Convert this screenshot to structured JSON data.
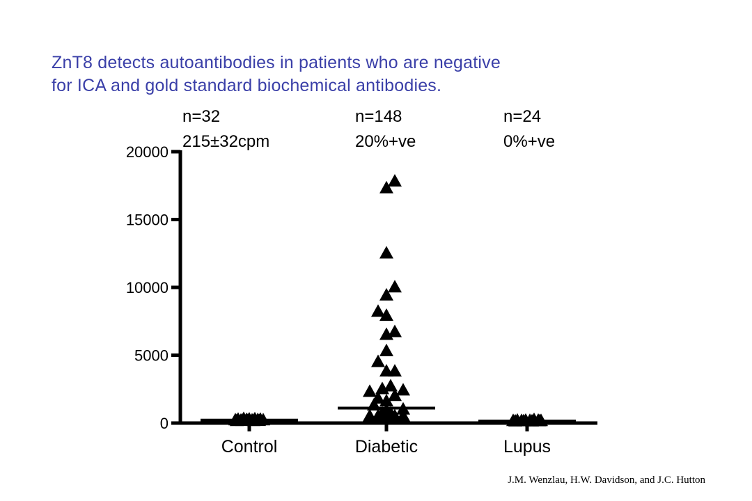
{
  "title": {
    "line1": "ZnT8 detects autoantibodies in patients who are negative",
    "line2": "for ICA and gold standard biochemical antibodies."
  },
  "groups": [
    {
      "name": "Control",
      "n_label": "n=32",
      "stat_label": "215±32cpm"
    },
    {
      "name": "Diabetic",
      "n_label": "n=148",
      "stat_label": "20%+ve"
    },
    {
      "name": "Lupus",
      "n_label": "n=24",
      "stat_label": "0%+ve"
    }
  ],
  "credit": "J.M. Wenzlau, H.W. Davidson, and J.C. Hutton",
  "chart_data": {
    "type": "scatter",
    "marker": "triangle",
    "marker_color": "#000000",
    "categories": [
      "Control",
      "Diabetic",
      "Lupus"
    ],
    "yticks": [
      0,
      5000,
      10000,
      15000,
      20000
    ],
    "ylim": [
      0,
      20000
    ],
    "grid": false,
    "medians": [
      215,
      1100,
      150
    ],
    "series": [
      {
        "category": "Control",
        "points": [
          {
            "jitter": -0.4,
            "y": 200
          },
          {
            "jitter": -0.32,
            "y": 250
          },
          {
            "jitter": -0.24,
            "y": 180
          },
          {
            "jitter": -0.16,
            "y": 300
          },
          {
            "jitter": -0.08,
            "y": 220
          },
          {
            "jitter": 0.0,
            "y": 260
          },
          {
            "jitter": 0.08,
            "y": 190
          },
          {
            "jitter": 0.16,
            "y": 280
          },
          {
            "jitter": 0.24,
            "y": 210
          },
          {
            "jitter": 0.32,
            "y": 240
          },
          {
            "jitter": 0.4,
            "y": 200
          },
          {
            "jitter": -0.36,
            "y": 150
          },
          {
            "jitter": -0.2,
            "y": 160
          },
          {
            "jitter": -0.04,
            "y": 170
          },
          {
            "jitter": 0.12,
            "y": 150
          },
          {
            "jitter": 0.28,
            "y": 160
          }
        ]
      },
      {
        "category": "Diabetic",
        "points": [
          {
            "jitter": 0.0,
            "y": 17300
          },
          {
            "jitter": 0.24,
            "y": 17800
          },
          {
            "jitter": 0.0,
            "y": 12500
          },
          {
            "jitter": 0.24,
            "y": 10000
          },
          {
            "jitter": 0.0,
            "y": 9400
          },
          {
            "jitter": -0.24,
            "y": 8200
          },
          {
            "jitter": 0.0,
            "y": 7900
          },
          {
            "jitter": 0.24,
            "y": 6700
          },
          {
            "jitter": 0.0,
            "y": 6500
          },
          {
            "jitter": 0.0,
            "y": 5300
          },
          {
            "jitter": -0.24,
            "y": 4500
          },
          {
            "jitter": 0.0,
            "y": 3800
          },
          {
            "jitter": 0.24,
            "y": 3800
          },
          {
            "jitter": 0.12,
            "y": 2700
          },
          {
            "jitter": -0.12,
            "y": 2500
          },
          {
            "jitter": -0.48,
            "y": 2300
          },
          {
            "jitter": 0.48,
            "y": 2400
          },
          {
            "jitter": 0.24,
            "y": 2000
          },
          {
            "jitter": -0.24,
            "y": 1800
          },
          {
            "jitter": 0.0,
            "y": 1600
          },
          {
            "jitter": 0.48,
            "y": 1000
          },
          {
            "jitter": -0.36,
            "y": 1300
          },
          {
            "jitter": 0.0,
            "y": 900
          },
          {
            "jitter": -0.48,
            "y": 500
          },
          {
            "jitter": -0.24,
            "y": 500
          },
          {
            "jitter": 0.0,
            "y": 500
          },
          {
            "jitter": 0.24,
            "y": 500
          },
          {
            "jitter": 0.48,
            "y": 500
          },
          {
            "jitter": -0.12,
            "y": 700
          },
          {
            "jitter": 0.12,
            "y": 700
          }
        ]
      },
      {
        "category": "Lupus",
        "points": [
          {
            "jitter": -0.4,
            "y": 150
          },
          {
            "jitter": -0.28,
            "y": 180
          },
          {
            "jitter": -0.16,
            "y": 150
          },
          {
            "jitter": -0.04,
            "y": 170
          },
          {
            "jitter": 0.08,
            "y": 160
          },
          {
            "jitter": 0.2,
            "y": 220
          },
          {
            "jitter": 0.32,
            "y": 170
          },
          {
            "jitter": 0.4,
            "y": 150
          },
          {
            "jitter": -0.34,
            "y": 120
          },
          {
            "jitter": -0.1,
            "y": 130
          },
          {
            "jitter": 0.14,
            "y": 120
          },
          {
            "jitter": 0.36,
            "y": 130
          }
        ]
      }
    ]
  }
}
